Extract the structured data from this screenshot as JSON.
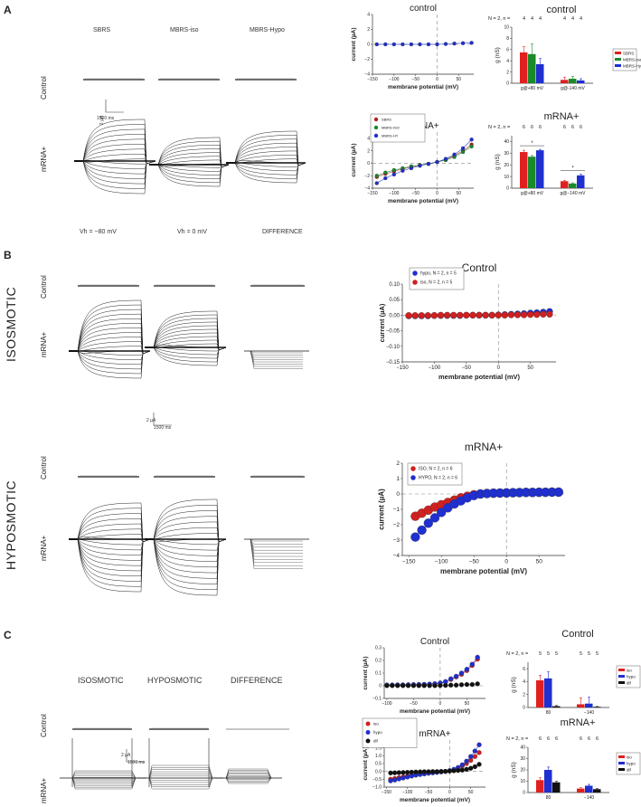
{
  "panels": {
    "A": {
      "letter": "A",
      "col_headers": [
        "SBRS",
        "MBRS-iso",
        "MBRS-Hypo"
      ],
      "row_labels": [
        "Control",
        "mRNA+"
      ],
      "scale": {
        "y": "2 µA",
        "x": "1500 ms"
      },
      "bottom_headers": [
        "Vh = −80 mV",
        "Vh = 0 mV",
        "DIFFERENCE"
      ]
    },
    "B": {
      "letter": "B",
      "group_labels": [
        "ISOSMOTIC",
        "HYPOSMOTIC"
      ],
      "row_labels": [
        "Control",
        "mRNA+",
        "Control",
        "mRNA+"
      ],
      "scale": {
        "y": "2 µA",
        "x": "1500 ms"
      }
    },
    "C": {
      "letter": "C",
      "col_headers": [
        "ISOSMOTIC",
        "HYPOSMOTIC",
        "DIFFERENCE"
      ],
      "row_labels": [
        "Control",
        "mRNA+"
      ],
      "scale": {
        "y": "2 µA",
        "x": "1500 ms"
      }
    }
  },
  "chart_data": [
    {
      "id": "A-iv-control",
      "type": "line",
      "title": "control",
      "xlabel": "membrane potential (mV)",
      "ylabel": "current (µA)",
      "xlim": [
        -150,
        85
      ],
      "ylim": [
        -4,
        4
      ],
      "xticks": [
        -150,
        -100,
        -50,
        0,
        50
      ],
      "yticks": [
        -4,
        -2,
        0,
        2,
        4
      ],
      "x": [
        -140,
        -120,
        -100,
        -80,
        -60,
        -40,
        -20,
        0,
        20,
        40,
        60,
        80
      ],
      "series": [
        {
          "name": "",
          "color": "#1f2fd0",
          "values": [
            0,
            0,
            0,
            0,
            0,
            0,
            0,
            0,
            0.05,
            0.1,
            0.15,
            0.2
          ]
        }
      ]
    },
    {
      "id": "A-bar-control",
      "type": "bar",
      "title": "control",
      "ylabel": "g (nS)",
      "ylim": [
        0,
        10
      ],
      "yticks": [
        0,
        2,
        4,
        6,
        8,
        10
      ],
      "categories": [
        "g@+80 mV",
        "g@-140 mV"
      ],
      "n_label": "N = 2, n =",
      "n_values": [
        "4",
        "4",
        "4",
        "4",
        "4",
        "4"
      ],
      "legend": [
        "SBRS",
        "MBRS-iso",
        "MBRS-Hypo"
      ],
      "series": [
        {
          "name": "SBRS",
          "color": "#e02020",
          "values": [
            5.5,
            0.6
          ],
          "errors": [
            1.0,
            0.5
          ]
        },
        {
          "name": "MBRS-iso",
          "color": "#1a8a2a",
          "values": [
            5.2,
            0.8
          ],
          "errors": [
            1.8,
            0.4
          ]
        },
        {
          "name": "MBRS-Hypo",
          "color": "#1f2fd0",
          "values": [
            3.4,
            0.5
          ],
          "errors": [
            1.0,
            0.3
          ]
        }
      ]
    },
    {
      "id": "A-iv-mrna",
      "type": "line",
      "title": "mRNA+",
      "xlabel": "membrane potential (mV)",
      "ylabel": "current (µA)",
      "xlim": [
        -150,
        85
      ],
      "ylim": [
        -4,
        5
      ],
      "xticks": [
        -150,
        -100,
        -50,
        0,
        50
      ],
      "yticks": [
        -4,
        -2,
        0,
        2,
        4
      ],
      "legend": [
        "SBRS",
        "MBRS-ISO",
        "MBRS-HY"
      ],
      "x": [
        -140,
        -120,
        -100,
        -80,
        -60,
        -40,
        -20,
        0,
        20,
        40,
        60,
        80
      ],
      "series": [
        {
          "name": "SBRS",
          "color": "#b02020",
          "values": [
            -2.2,
            -1.7,
            -1.3,
            -0.9,
            -0.6,
            -0.3,
            -0.1,
            0.2,
            0.6,
            1.2,
            2.0,
            3.0
          ]
        },
        {
          "name": "MBRS-ISO",
          "color": "#1a8a2a",
          "values": [
            -2.0,
            -1.5,
            -1.1,
            -0.8,
            -0.5,
            -0.3,
            -0.1,
            0.2,
            0.5,
            1.0,
            1.8,
            2.7
          ]
        },
        {
          "name": "MBRS-HY",
          "color": "#1f2fd0",
          "values": [
            -3.2,
            -2.4,
            -1.8,
            -1.2,
            -0.8,
            -0.4,
            -0.1,
            0.2,
            0.7,
            1.4,
            2.4,
            3.8
          ]
        }
      ]
    },
    {
      "id": "A-bar-mrna",
      "type": "bar",
      "title": "mRNA+",
      "ylabel": "g (nS)",
      "ylim": [
        0,
        45
      ],
      "yticks": [
        0,
        10,
        20,
        30,
        40
      ],
      "categories": [
        "g@+80 mV",
        "g@−140 mV"
      ],
      "n_label": "N = 2, n =",
      "n_values": [
        "6",
        "6",
        "6",
        "6",
        "6",
        "6"
      ],
      "significance": [
        "*",
        "*"
      ],
      "series": [
        {
          "name": "SBRS",
          "color": "#e02020",
          "values": [
            31,
            6
          ],
          "errors": [
            1.5,
            0.8
          ]
        },
        {
          "name": "MBRS-iso",
          "color": "#1a8a2a",
          "values": [
            27,
            4
          ],
          "errors": [
            1.0,
            0.6
          ]
        },
        {
          "name": "MBRS-Hypo",
          "color": "#1f2fd0",
          "values": [
            32.5,
            11
          ],
          "errors": [
            0.8,
            1.0
          ]
        }
      ]
    },
    {
      "id": "B-iv-control",
      "type": "scatter",
      "title": "Control",
      "xlabel": "membrane potential (mV)",
      "ylabel": "current (µA)",
      "xlim": [
        -150,
        90
      ],
      "ylim": [
        -0.15,
        0.1
      ],
      "xticks": [
        -150,
        -100,
        -50,
        0,
        50
      ],
      "yticks": [
        -0.15,
        -0.1,
        -0.05,
        0.0,
        0.05,
        0.1
      ],
      "ytick_labels": [
        "−0.15",
        "−0.10",
        "−0.05",
        "0.00",
        "0.05",
        "0.10"
      ],
      "legend": [
        "hypo, N = 2, n = 5",
        "iso, N = 2, n = 5"
      ],
      "x": [
        -140,
        -130,
        -120,
        -110,
        -100,
        -90,
        -80,
        -70,
        -60,
        -50,
        -40,
        -30,
        -20,
        -10,
        0,
        10,
        20,
        30,
        40,
        50,
        60,
        70,
        80
      ],
      "series": [
        {
          "name": "hypo, N = 2, n = 5",
          "color": "#1f2fd0",
          "values": [
            -0.002,
            -0.002,
            -0.002,
            -0.002,
            -0.001,
            -0.001,
            -0.001,
            -0.001,
            -0.001,
            0,
            0,
            0,
            0,
            0,
            0.001,
            0.002,
            0.003,
            0.004,
            0.005,
            0.007,
            0.008,
            0.01,
            0.012
          ]
        },
        {
          "name": "iso, N = 2, n = 5",
          "color": "#d02020",
          "values": [
            -0.001,
            -0.001,
            -0.001,
            -0.001,
            -0.001,
            0,
            0,
            0,
            0,
            0,
            0,
            0,
            0,
            0,
            0,
            0,
            0.001,
            0.001,
            0.001,
            0.002,
            0.002,
            0.003,
            0.003
          ]
        }
      ]
    },
    {
      "id": "B-iv-mrna",
      "type": "scatter",
      "title": "mRNA+",
      "xlabel": "membrane potential (mV)",
      "ylabel": "current (µA)",
      "xlim": [
        -160,
        90
      ],
      "ylim": [
        -4,
        2
      ],
      "xticks": [
        -150,
        -100,
        -50,
        0,
        50
      ],
      "yticks": [
        -4,
        -3,
        -2,
        -1,
        0,
        1,
        2
      ],
      "legend": [
        "ISO, N = 2, n = 6",
        "HYPO, N = 2, n = 6"
      ],
      "x": [
        -140,
        -130,
        -120,
        -110,
        -100,
        -90,
        -80,
        -70,
        -60,
        -50,
        -40,
        -30,
        -20,
        -10,
        0,
        10,
        20,
        30,
        40,
        50,
        60,
        70,
        80
      ],
      "series": [
        {
          "name": "ISO, N = 2, n = 6",
          "color": "#d02020",
          "values": [
            -1.45,
            -1.25,
            -1.05,
            -0.85,
            -0.7,
            -0.55,
            -0.4,
            -0.25,
            -0.15,
            -0.05,
            0,
            0.03,
            0.05,
            0.06,
            0.07,
            0.08,
            0.09,
            0.1,
            0.1,
            0.11,
            0.11,
            0.12,
            0.12
          ]
        },
        {
          "name": "HYPO, N = 2, n = 6",
          "color": "#1f2fd0",
          "values": [
            -2.8,
            -2.35,
            -1.9,
            -1.55,
            -1.2,
            -0.9,
            -0.65,
            -0.45,
            -0.25,
            -0.1,
            0,
            0.03,
            0.05,
            0.06,
            0.07,
            0.08,
            0.09,
            0.1,
            0.1,
            0.11,
            0.11,
            0.12,
            0.12
          ]
        }
      ]
    },
    {
      "id": "C-iv-control",
      "type": "scatter",
      "title": "Control",
      "xlabel": "membrane potential (mV)",
      "ylabel": "current (µA)",
      "xlim": [
        -105,
        85
      ],
      "ylim": [
        -0.1,
        0.3
      ],
      "xticks": [
        -100,
        -50,
        0,
        50
      ],
      "yticks": [
        -0.1,
        0,
        0.1,
        0.2,
        0.3
      ],
      "x": [
        -100,
        -90,
        -80,
        -70,
        -60,
        -50,
        -40,
        -30,
        -20,
        -10,
        0,
        10,
        20,
        30,
        40,
        50,
        60,
        70
      ],
      "series": [
        {
          "name": "iso",
          "color": "#d02020",
          "values": [
            0.005,
            0.005,
            0.006,
            0.006,
            0.007,
            0.008,
            0.009,
            0.01,
            0.012,
            0.015,
            0.02,
            0.03,
            0.05,
            0.07,
            0.09,
            0.12,
            0.16,
            0.21
          ]
        },
        {
          "name": "hypo",
          "color": "#1f2fd0",
          "values": [
            0.006,
            0.006,
            0.007,
            0.007,
            0.008,
            0.009,
            0.01,
            0.011,
            0.013,
            0.016,
            0.022,
            0.033,
            0.055,
            0.075,
            0.1,
            0.13,
            0.17,
            0.225
          ]
        },
        {
          "name": "dif",
          "color": "#111111",
          "values": [
            0.001,
            0.001,
            0.001,
            0.001,
            0.001,
            0.001,
            0.001,
            0.001,
            0.001,
            0.001,
            0.002,
            0.003,
            0.005,
            0.005,
            0.008,
            0.01,
            0.01,
            0.015
          ]
        }
      ]
    },
    {
      "id": "C-bar-control",
      "type": "bar",
      "title": "Control",
      "ylabel": "g (nS)",
      "ylim": [
        0,
        7
      ],
      "yticks": [
        0,
        2,
        4,
        6
      ],
      "categories": [
        "80",
        "−140"
      ],
      "n_label": "N = 2, n =",
      "n_values": [
        "5",
        "5",
        "5",
        "5",
        "5",
        "5"
      ],
      "legend": [
        "iso",
        "hypo",
        "dif"
      ],
      "series": [
        {
          "name": "iso",
          "color": "#e02020",
          "values": [
            4.2,
            0.5
          ],
          "errors": [
            0.8,
            1.0
          ]
        },
        {
          "name": "hypo",
          "color": "#1f2fd0",
          "values": [
            4.5,
            0.6
          ],
          "errors": [
            1.0,
            1.0
          ]
        },
        {
          "name": "dif",
          "color": "#111111",
          "values": [
            0.2,
            0.1
          ],
          "errors": [
            0.1,
            0.05
          ]
        }
      ]
    },
    {
      "id": "C-iv-mrna",
      "type": "scatter",
      "title": "mRNA+",
      "xlabel": "membrane potential (mV)",
      "ylabel": "current (µA)",
      "xlim": [
        -155,
        85
      ],
      "ylim": [
        -1.0,
        2.0
      ],
      "xticks": [
        -150,
        -100,
        -50,
        0,
        50
      ],
      "yticks": [
        -1.0,
        -0.5,
        0,
        0.5,
        1.0,
        1.5,
        2.0
      ],
      "ytick_labels": [
        "−1.0",
        "−0.5",
        "0.0",
        "0.5",
        "1.0",
        "1.5",
        "2.0"
      ],
      "legend": [
        "iso",
        "hypo",
        "dif"
      ],
      "x": [
        -140,
        -130,
        -120,
        -110,
        -100,
        -90,
        -80,
        -70,
        -60,
        -50,
        -40,
        -30,
        -20,
        -10,
        0,
        10,
        20,
        30,
        40,
        50,
        60,
        70
      ],
      "series": [
        {
          "name": "iso",
          "color": "#d02020",
          "values": [
            -0.5,
            -0.45,
            -0.4,
            -0.35,
            -0.3,
            -0.25,
            -0.2,
            -0.17,
            -0.14,
            -0.1,
            -0.08,
            -0.05,
            -0.03,
            0,
            0.03,
            0.1,
            0.2,
            0.35,
            0.5,
            0.7,
            0.95,
            1.2
          ]
        },
        {
          "name": "hypo",
          "color": "#1f2fd0",
          "values": [
            -0.6,
            -0.55,
            -0.48,
            -0.42,
            -0.36,
            -0.3,
            -0.24,
            -0.2,
            -0.16,
            -0.12,
            -0.09,
            -0.06,
            -0.03,
            0,
            0.05,
            0.13,
            0.25,
            0.42,
            0.65,
            0.95,
            1.3,
            1.7
          ]
        },
        {
          "name": "dif",
          "color": "#111111",
          "values": [
            -0.1,
            -0.09,
            -0.08,
            -0.07,
            -0.06,
            -0.05,
            -0.04,
            -0.03,
            -0.02,
            -0.02,
            -0.01,
            -0.01,
            0,
            0,
            0.02,
            0.04,
            0.06,
            0.08,
            0.13,
            0.2,
            0.3,
            0.45
          ]
        }
      ]
    },
    {
      "id": "C-bar-mrna",
      "type": "bar",
      "title": "mRNA+",
      "ylabel": "g (nS)",
      "ylim": [
        0,
        40
      ],
      "yticks": [
        0,
        10,
        20,
        30,
        40
      ],
      "categories": [
        "80",
        "−140"
      ],
      "n_label": "N = 2, n =",
      "n_values": [
        "6",
        "6",
        "6",
        "6",
        "6",
        "6"
      ],
      "legend": [
        "iso",
        "hypo",
        "dif"
      ],
      "series": [
        {
          "name": "iso",
          "color": "#e02020",
          "values": [
            11,
            3.5
          ],
          "errors": [
            2,
            0.8
          ]
        },
        {
          "name": "hypo",
          "color": "#1f2fd0",
          "values": [
            20,
            6
          ],
          "errors": [
            2.5,
            1.2
          ]
        },
        {
          "name": "dif",
          "color": "#111111",
          "values": [
            9,
            3
          ],
          "errors": [
            1,
            0.5
          ]
        }
      ]
    }
  ]
}
